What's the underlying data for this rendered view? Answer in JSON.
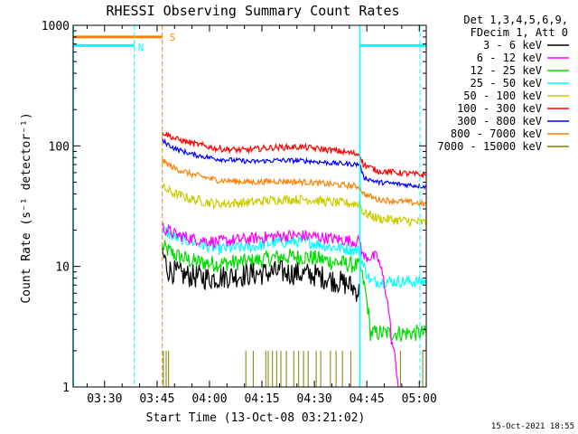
{
  "chart_data": {
    "type": "line",
    "title": "RHESSI Observing Summary Count Rates",
    "xlabel": "Start Time (13-Oct-08 03:21:02)",
    "ylabel": "Count Rate (s⁻¹ detector⁻¹)",
    "yscale": "log",
    "ylim": [
      1,
      1000
    ],
    "xlim_minutes": [
      21,
      122
    ],
    "x_ticks": [
      {
        "minute": 30,
        "label": "03:30"
      },
      {
        "minute": 45,
        "label": "03:45"
      },
      {
        "minute": 60,
        "label": "04:00"
      },
      {
        "minute": 75,
        "label": "04:15"
      },
      {
        "minute": 90,
        "label": "04:30"
      },
      {
        "minute": 105,
        "label": "04:45"
      },
      {
        "minute": 120,
        "label": "05:00"
      }
    ],
    "y_ticks": [
      {
        "value": 1,
        "label": "1"
      },
      {
        "value": 10,
        "label": "10"
      },
      {
        "value": 100,
        "label": "100"
      },
      {
        "value": 1000,
        "label": "1000"
      }
    ],
    "legend_header": [
      "Det 1,3,4,5,6,9,",
      "FDecim 1, Att 0"
    ],
    "timestamp": "15-Oct-2021 18:55",
    "series": [
      {
        "name": "3 - 6 keV",
        "color": "#000000",
        "noise": 0.1,
        "points": [
          [
            46.5,
            13
          ],
          [
            48,
            9.5
          ],
          [
            52,
            8.5
          ],
          [
            60,
            8
          ],
          [
            70,
            8.5
          ],
          [
            80,
            9
          ],
          [
            90,
            8.5
          ],
          [
            100,
            7
          ],
          [
            103,
            6
          ]
        ]
      },
      {
        "name": "6 - 12 keV",
        "color": "#ff00ff",
        "noise": 0.05,
        "points": [
          [
            46.5,
            21
          ],
          [
            50,
            18.5
          ],
          [
            55,
            17
          ],
          [
            62,
            16
          ],
          [
            72,
            17
          ],
          [
            80,
            18
          ],
          [
            88,
            18
          ],
          [
            95,
            17
          ],
          [
            103,
            16
          ],
          [
            104,
            12
          ],
          [
            108,
            12
          ],
          [
            112,
            2.5
          ],
          [
            114,
            1
          ]
        ]
      },
      {
        "name": "12 - 25 keV",
        "color": "#00dd00",
        "noise": 0.07,
        "points": [
          [
            46.5,
            14.5
          ],
          [
            50,
            12.5
          ],
          [
            55,
            11
          ],
          [
            62,
            10.5
          ],
          [
            72,
            11
          ],
          [
            80,
            12
          ],
          [
            88,
            12
          ],
          [
            95,
            11
          ],
          [
            103,
            10
          ],
          [
            104,
            7.5
          ],
          [
            106,
            2.8
          ],
          [
            122,
            2.8
          ]
        ]
      },
      {
        "name": "25 - 50 keV",
        "color": "#00ffff",
        "noise": 0.05,
        "points": [
          [
            46.5,
            20
          ],
          [
            50,
            17.5
          ],
          [
            55,
            16
          ],
          [
            62,
            14
          ],
          [
            72,
            14.5
          ],
          [
            80,
            16
          ],
          [
            88,
            16
          ],
          [
            95,
            14.5
          ],
          [
            103,
            13.5
          ],
          [
            104,
            10
          ],
          [
            106,
            7.5
          ],
          [
            122,
            7.5
          ]
        ]
      },
      {
        "name": "50 - 100 keV",
        "color": "#cccc00",
        "noise": 0.04,
        "points": [
          [
            46.5,
            45
          ],
          [
            50,
            40
          ],
          [
            55,
            36
          ],
          [
            62,
            33
          ],
          [
            72,
            34
          ],
          [
            80,
            36
          ],
          [
            88,
            36
          ],
          [
            95,
            34
          ],
          [
            103,
            33
          ],
          [
            104,
            28
          ],
          [
            108,
            25
          ],
          [
            122,
            23
          ]
        ]
      },
      {
        "name": "100 - 300 keV",
        "color": "#ff0000",
        "noise": 0.025,
        "points": [
          [
            46.5,
            130
          ],
          [
            50,
            115
          ],
          [
            55,
            105
          ],
          [
            62,
            95
          ],
          [
            70,
            92
          ],
          [
            78,
            97
          ],
          [
            86,
            98
          ],
          [
            95,
            92
          ],
          [
            103,
            85
          ],
          [
            104,
            70
          ],
          [
            108,
            62
          ],
          [
            122,
            57
          ]
        ]
      },
      {
        "name": "300 - 800 keV",
        "color": "#0000ff",
        "noise": 0.02,
        "points": [
          [
            46.5,
            110
          ],
          [
            50,
            95
          ],
          [
            55,
            85
          ],
          [
            62,
            78
          ],
          [
            72,
            74
          ],
          [
            80,
            76
          ],
          [
            88,
            75
          ],
          [
            95,
            72
          ],
          [
            103,
            70
          ],
          [
            104,
            55
          ],
          [
            108,
            50
          ],
          [
            122,
            46
          ]
        ]
      },
      {
        "name": "800 - 7000 keV",
        "color": "#ff8000",
        "noise": 0.025,
        "points": [
          [
            46.5,
            75
          ],
          [
            50,
            65
          ],
          [
            55,
            58
          ],
          [
            62,
            52
          ],
          [
            72,
            50
          ],
          [
            80,
            51
          ],
          [
            88,
            50
          ],
          [
            95,
            48
          ],
          [
            103,
            46
          ],
          [
            104,
            40
          ],
          [
            108,
            36
          ],
          [
            122,
            33
          ]
        ]
      },
      {
        "name": "7000 - 15000 keV",
        "color": "#808000",
        "noise": 0.0,
        "points": []
      }
    ],
    "flags": [
      {
        "label": "S",
        "color": "#ff8000",
        "level": 800,
        "start": 21,
        "end": 46.5,
        "markers": [
          46.5
        ]
      },
      {
        "name": "N",
        "color": "#00ffff",
        "level": 680,
        "segments": [
          [
            21,
            38.5
          ],
          [
            103,
            122
          ]
        ],
        "markers": [
          38.5,
          103
        ]
      }
    ]
  }
}
